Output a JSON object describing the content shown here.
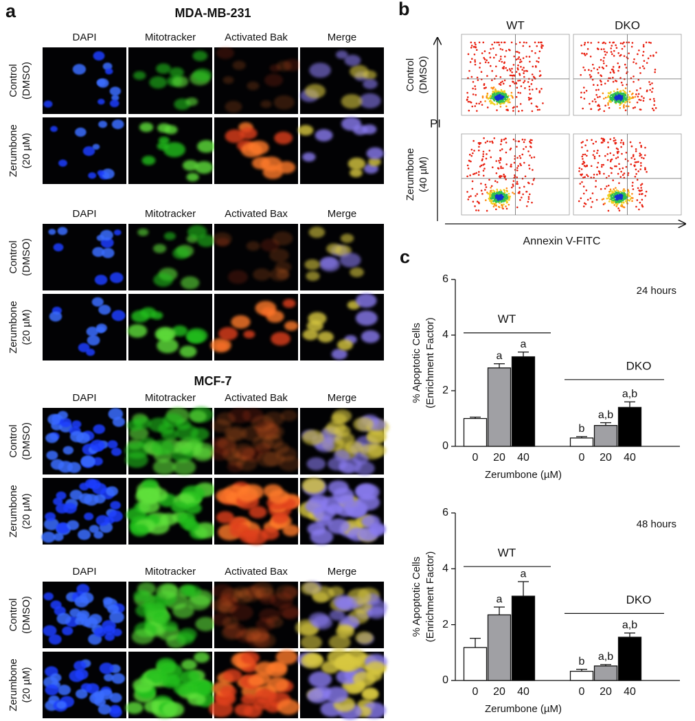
{
  "panel_a": {
    "label": "a",
    "sections": [
      {
        "title": "MDA-MB-231",
        "blocks": [
          {
            "columns": [
              "DAPI",
              "Mitotracker",
              "Activated Bak",
              "Merge"
            ],
            "rows": [
              [
                "Control",
                "(DMSO)"
              ],
              [
                "Zerumbone",
                "(20 µM)"
              ]
            ]
          },
          {
            "columns": [
              "DAPI",
              "Mitotracker",
              "Activated Bax",
              "Merge"
            ],
            "rows": [
              [
                "Control",
                "(DMSO)"
              ],
              [
                "Zerumbone",
                "(20 µM)"
              ]
            ]
          }
        ]
      },
      {
        "title": "MCF-7",
        "blocks": [
          {
            "columns": [
              "DAPI",
              "Mitotracker",
              "Activated Bak",
              "Merge"
            ],
            "rows": [
              [
                "Control",
                "(DMSO)"
              ],
              [
                "Zerumbone",
                "(20 µM)"
              ]
            ]
          },
          {
            "columns": [
              "DAPI",
              "Mitotracker",
              "Activated Bax",
              "Merge"
            ],
            "rows": [
              [
                "Control",
                "(DMSO)"
              ],
              [
                "Zerumbone",
                "(20 µM)"
              ]
            ]
          }
        ]
      }
    ]
  },
  "panel_b": {
    "label": "b",
    "columns": [
      "WT",
      "DKO"
    ],
    "rows": [
      [
        "Control",
        "(DMSO)"
      ],
      [
        "Zerumbone",
        "(40 µM)"
      ]
    ],
    "y_axis_label": "PI",
    "x_axis_label": "Annexin V-FITC"
  },
  "panel_c": {
    "label": "c",
    "charts": [
      {
        "type": "bar",
        "annotation": "24 hours",
        "y_label": [
          "% Apoptotic Cells",
          "(Enrichment Factor)"
        ],
        "x_label": "Zerumbone (µM)",
        "ylim": [
          0,
          6
        ],
        "yticks": [
          0,
          2,
          4,
          6
        ],
        "colors": [
          "#ffffff",
          "#a0a0a4",
          "#000000"
        ],
        "groups": [
          {
            "label": "WT",
            "categories": [
              "0",
              "20",
              "40"
            ],
            "values": [
              1.0,
              2.82,
              3.22
            ],
            "errors": [
              0.05,
              0.15,
              0.17
            ],
            "annotations": [
              null,
              "a",
              "a"
            ]
          },
          {
            "label": "DKO",
            "categories": [
              "0",
              "20",
              "40"
            ],
            "values": [
              0.3,
              0.75,
              1.4
            ],
            "errors": [
              0.05,
              0.1,
              0.2
            ],
            "annotations": [
              "b",
              "a,b",
              "a,b"
            ]
          }
        ]
      },
      {
        "type": "bar",
        "annotation": "48 hours",
        "y_label": [
          "% Apoptotic Cells",
          "(Enrichment Factor)"
        ],
        "x_label": "Zerumbone (µM)",
        "ylim": [
          0,
          6
        ],
        "yticks": [
          0,
          2,
          4,
          6
        ],
        "colors": [
          "#ffffff",
          "#a0a0a4",
          "#000000"
        ],
        "groups": [
          {
            "label": "WT",
            "categories": [
              "0",
              "20",
              "40"
            ],
            "values": [
              1.18,
              2.35,
              3.02
            ],
            "errors": [
              0.33,
              0.28,
              0.52
            ],
            "annotations": [
              null,
              "a",
              "a"
            ]
          },
          {
            "label": "DKO",
            "categories": [
              "0",
              "20",
              "40"
            ],
            "values": [
              0.33,
              0.52,
              1.55
            ],
            "errors": [
              0.07,
              0.05,
              0.15
            ],
            "annotations": [
              "b",
              "a,b",
              "a,b"
            ]
          }
        ]
      }
    ]
  }
}
